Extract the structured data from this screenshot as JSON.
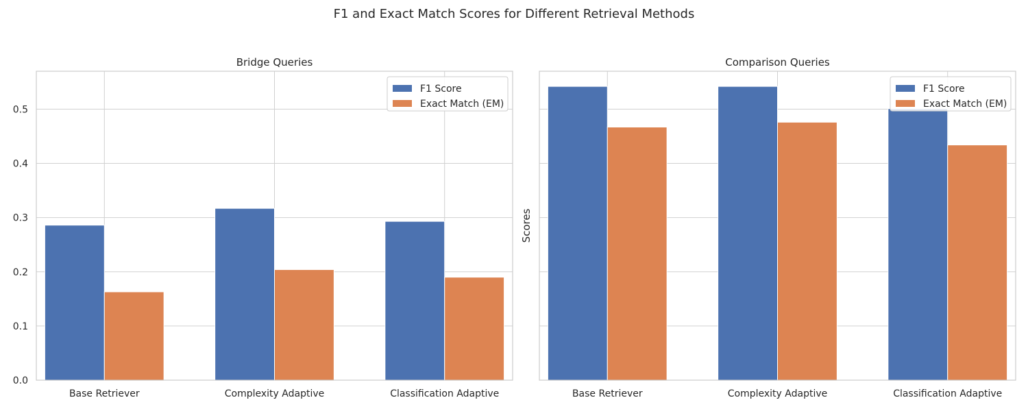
{
  "title": "F1 and Exact Match Scores for Different Retrieval Methods",
  "colors": {
    "f1": "#4c72b0",
    "em": "#dd8452",
    "grid": "#d0d0d0",
    "frame": "#cccccc"
  },
  "chart_data": [
    {
      "type": "bar",
      "title": "Bridge Queries",
      "xlabel": "",
      "ylabel": "",
      "categories": [
        "Base Retriever",
        "Complexity Adaptive",
        "Classification Adaptive"
      ],
      "series": [
        {
          "name": "F1 Score",
          "values": [
            0.286,
            0.317,
            0.293
          ]
        },
        {
          "name": "Exact Match (EM)",
          "values": [
            0.163,
            0.204,
            0.19
          ]
        }
      ],
      "ylim": [
        0,
        0.57
      ],
      "yticks": [
        "0.0",
        "0.1",
        "0.2",
        "0.3",
        "0.4",
        "0.5"
      ],
      "grid": true,
      "legend": "top-right"
    },
    {
      "type": "bar",
      "title": "Comparison Queries",
      "xlabel": "",
      "ylabel": "Scores",
      "categories": [
        "Base Retriever",
        "Complexity Adaptive",
        "Classification Adaptive"
      ],
      "series": [
        {
          "name": "F1 Score",
          "values": [
            0.542,
            0.542,
            0.501
          ]
        },
        {
          "name": "Exact Match (EM)",
          "values": [
            0.467,
            0.476,
            0.434
          ]
        }
      ],
      "ylim": [
        0,
        0.57
      ],
      "yticks": [],
      "grid": true,
      "legend": "top-right"
    }
  ]
}
